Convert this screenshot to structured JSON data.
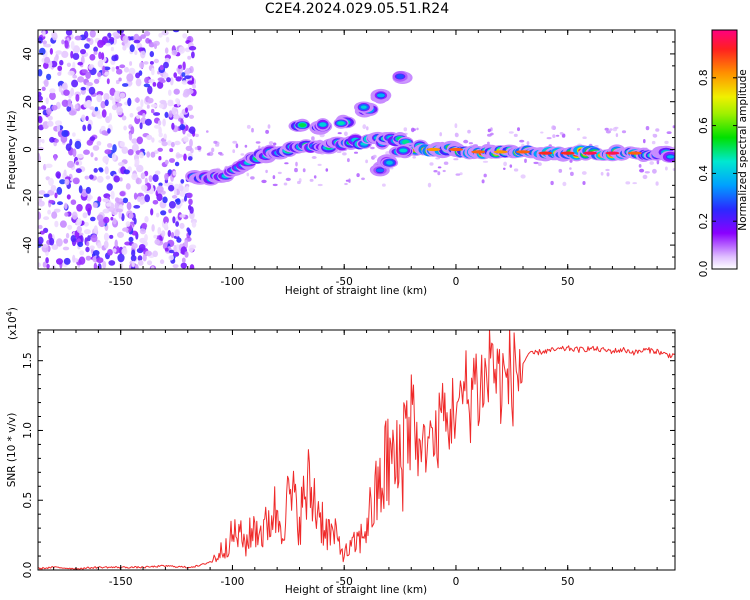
{
  "title": "C2E4.2024.029.05.51.R24",
  "colors": {
    "snr_line": "#ef2a2a",
    "spectrum_low": "#e5c8ff",
    "spectrum_mid": "#7a00ff",
    "spectrum_high": "#00e0a0",
    "spectrum_peak": "#ff1a1a"
  },
  "chart_data": [
    {
      "type": "heatmap",
      "xlabel": "Height of straight line (km)",
      "ylabel": "Frequency (Hz)",
      "xlim": [
        -187,
        98
      ],
      "ylim": [
        -50,
        50
      ],
      "xticks": [
        -150,
        -100,
        -50,
        0,
        50
      ],
      "xtick_labels": [
        "-150",
        "-100",
        "-50",
        "0",
        "50"
      ],
      "yticks": [
        -40,
        -20,
        0,
        20,
        40
      ],
      "ytick_labels": [
        "-40",
        "-20",
        "0",
        "20",
        "40"
      ],
      "noise_region_x": [
        -187,
        -117
      ],
      "ridge": [
        {
          "x": -117,
          "freq": -12,
          "amp": 0.45
        },
        {
          "x": -105,
          "freq": -11,
          "amp": 0.55
        },
        {
          "x": -95,
          "freq": -6,
          "amp": 0.5
        },
        {
          "x": -85,
          "freq": -2,
          "amp": 0.55
        },
        {
          "x": -75,
          "freq": 0,
          "amp": 0.6
        },
        {
          "x": -65,
          "freq": 1,
          "amp": 0.55
        },
        {
          "x": -55,
          "freq": 2,
          "amp": 0.6
        },
        {
          "x": -45,
          "freq": 3,
          "amp": 0.55
        },
        {
          "x": -35,
          "freq": 4,
          "amp": 0.6
        },
        {
          "x": -25,
          "freq": 4,
          "amp": 0.6
        },
        {
          "x": -20,
          "freq": 1,
          "amp": 0.75
        },
        {
          "x": -10,
          "freq": 0,
          "amp": 0.8
        },
        {
          "x": 0,
          "freq": 0,
          "amp": 0.85
        },
        {
          "x": 10,
          "freq": -1,
          "amp": 0.85
        },
        {
          "x": 20,
          "freq": -1,
          "amp": 0.8
        },
        {
          "x": 30,
          "freq": -1,
          "amp": 0.85
        },
        {
          "x": 40,
          "freq": -1.5,
          "amp": 0.9
        },
        {
          "x": 50,
          "freq": -1.5,
          "amp": 0.9
        },
        {
          "x": 60,
          "freq": -1.5,
          "amp": 0.95
        },
        {
          "x": 70,
          "freq": -1.5,
          "amp": 0.95
        },
        {
          "x": 80,
          "freq": -1.5,
          "amp": 0.85
        },
        {
          "x": 90,
          "freq": -2,
          "amp": 0.6
        },
        {
          "x": 98,
          "freq": -2,
          "amp": 0.5
        }
      ],
      "branches": [
        {
          "x": -70,
          "freq": 10,
          "amp": 0.55
        },
        {
          "x": -60,
          "freq": 10,
          "amp": 0.6
        },
        {
          "x": -50,
          "freq": 11,
          "amp": 0.5
        },
        {
          "x": -40,
          "freq": 17,
          "amp": 0.6
        },
        {
          "x": -33,
          "freq": 22,
          "amp": 0.45
        },
        {
          "x": -25,
          "freq": 31,
          "amp": 0.35
        },
        {
          "x": -35,
          "freq": -8,
          "amp": 0.45
        },
        {
          "x": -30,
          "freq": -5,
          "amp": 0.5
        },
        {
          "x": -24,
          "freq": -1,
          "amp": 0.55
        }
      ]
    },
    {
      "type": "colorbar",
      "label": "Normalized spectral amplitude",
      "ylim": [
        0,
        1
      ],
      "ticks": [
        0.0,
        0.2,
        0.4,
        0.6,
        0.8
      ],
      "tick_labels": [
        "0.0",
        "0.2",
        "0.4",
        "0.6",
        "0.8"
      ]
    },
    {
      "type": "line",
      "xlabel": "Height of straight line (km)",
      "ylabel": "SNR (10 * v/v)",
      "multiplier_label": "(x10",
      "multiplier_exp": "4",
      "multiplier_close": ")",
      "xlim": [
        -187,
        98
      ],
      "ylim": [
        0,
        1.72
      ],
      "xticks": [
        -150,
        -100,
        -50,
        0,
        50
      ],
      "xtick_labels": [
        "-150",
        "-100",
        "-50",
        "0",
        "50"
      ],
      "yticks": [
        0.0,
        0.5,
        1.0,
        1.5
      ],
      "ytick_labels": [
        "0.0",
        "0.5",
        "1.0",
        "1.5"
      ],
      "series": [
        {
          "x": [
            -187,
            -180,
            -170,
            -160,
            -150,
            -140,
            -130,
            -120,
            -115,
            -110,
            -106,
            -102,
            -98,
            -94,
            -90,
            -86,
            -82,
            -78,
            -74,
            -70,
            -66,
            -62,
            -58,
            -54,
            -50,
            -46,
            -42,
            -38,
            -34,
            -30,
            -26,
            -22,
            -20,
            -18,
            -16,
            -14,
            -12,
            -10,
            -8,
            -6,
            -4,
            -2,
            0,
            2,
            4,
            6,
            8,
            10,
            12,
            14,
            16,
            18,
            20,
            22,
            24,
            26,
            28,
            30,
            32,
            36,
            40,
            45,
            50,
            55,
            60,
            65,
            70,
            75,
            80,
            85,
            90,
            93,
            96,
            98
          ],
          "y": [
            0.01,
            0.02,
            0.01,
            0.02,
            0.02,
            0.02,
            0.03,
            0.02,
            0.03,
            0.06,
            0.12,
            0.22,
            0.28,
            0.2,
            0.33,
            0.28,
            0.45,
            0.38,
            0.55,
            0.4,
            0.62,
            0.48,
            0.3,
            0.25,
            0.12,
            0.18,
            0.25,
            0.45,
            0.62,
            0.85,
            0.75,
            1.1,
            1.35,
            1.0,
            0.8,
            0.9,
            1.05,
            0.9,
            1.0,
            1.2,
            1.05,
            1.15,
            1.25,
            1.15,
            1.35,
            1.2,
            1.45,
            1.3,
            1.42,
            1.35,
            1.7,
            1.38,
            1.42,
            1.36,
            1.44,
            1.42,
            1.5,
            1.48,
            1.54,
            1.56,
            1.57,
            1.58,
            1.59,
            1.58,
            1.59,
            1.58,
            1.57,
            1.58,
            1.56,
            1.58,
            1.57,
            1.55,
            1.54,
            1.55
          ]
        }
      ]
    }
  ]
}
